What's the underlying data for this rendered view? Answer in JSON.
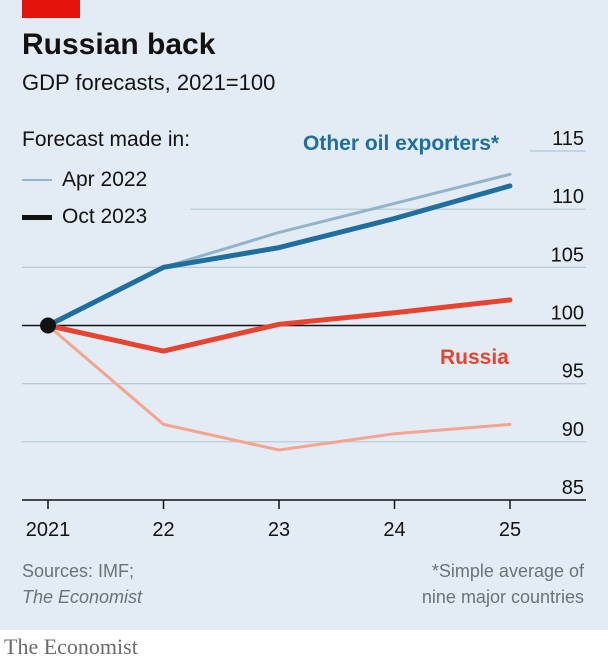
{
  "title": "Russian back",
  "subtitle": "GDP forecasts, 2021=100",
  "legend": {
    "heading": "Forecast made in:",
    "items": [
      {
        "label": "Apr 2022",
        "color": "#93b3c9"
      },
      {
        "label": "Oct 2023",
        "color": "#121212"
      }
    ]
  },
  "source_line1": "Sources: IMF;",
  "source_line2": "The Economist",
  "footnote_line1": "*Simple average of",
  "footnote_line2": "nine major countries",
  "brand": "The Economist",
  "colors": {
    "oil_old": "#93b3c9",
    "oil_new": "#1f6e9e",
    "russia_old": "#f4a48f",
    "russia_new": "#e8432f",
    "accent": "#e3120b"
  },
  "chart_data": {
    "type": "line",
    "x": [
      2021,
      2022,
      2023,
      2024,
      2025
    ],
    "x_tick_labels": [
      "2021",
      "22",
      "23",
      "24",
      "25"
    ],
    "y_ticks": [
      85,
      90,
      95,
      100,
      105,
      110,
      115
    ],
    "ylim": [
      85,
      115
    ],
    "baseline": 100,
    "series_labels": {
      "oil": "Other oil exporters*",
      "russia": "Russia"
    },
    "series": [
      {
        "group": "oil",
        "forecast": "Apr 2022",
        "values": [
          100,
          105,
          108,
          110.5,
          113
        ]
      },
      {
        "group": "oil",
        "forecast": "Oct 2023",
        "values": [
          100,
          105,
          106.7,
          109.2,
          112
        ]
      },
      {
        "group": "russia",
        "forecast": "Apr 2022",
        "values": [
          100,
          91.5,
          89.3,
          90.7,
          91.5
        ]
      },
      {
        "group": "russia",
        "forecast": "Oct 2023",
        "values": [
          100,
          97.8,
          100.1,
          101.1,
          102.2
        ]
      }
    ]
  }
}
